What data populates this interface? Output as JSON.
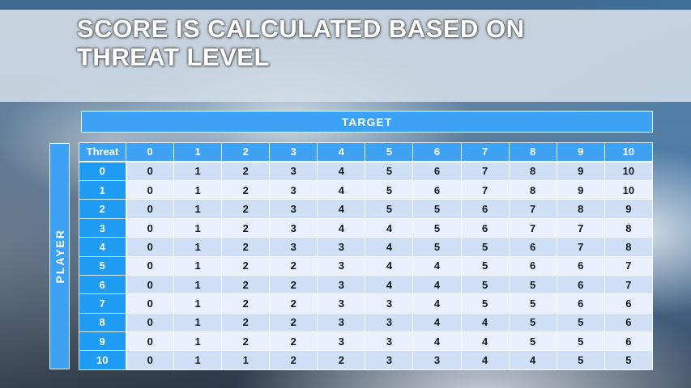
{
  "slide": {
    "title_line1": "SCORE IS CALCULATED BASED ON",
    "title_line2": "THREAT LEVEL"
  },
  "table": {
    "target_label": "TARGET",
    "player_label": "PLAYER",
    "corner_label": "Threat",
    "col_headers": [
      "0",
      "1",
      "2",
      "3",
      "4",
      "5",
      "6",
      "7",
      "8",
      "9",
      "10"
    ],
    "rows": [
      {
        "threat": "0",
        "scores": [
          0,
          1,
          2,
          3,
          4,
          5,
          6,
          7,
          8,
          9,
          10
        ]
      },
      {
        "threat": "1",
        "scores": [
          0,
          1,
          2,
          3,
          4,
          5,
          6,
          7,
          8,
          9,
          10
        ]
      },
      {
        "threat": "2",
        "scores": [
          0,
          1,
          2,
          3,
          4,
          5,
          5,
          6,
          7,
          8,
          9
        ]
      },
      {
        "threat": "3",
        "scores": [
          0,
          1,
          2,
          3,
          4,
          4,
          5,
          6,
          7,
          7,
          8
        ]
      },
      {
        "threat": "4",
        "scores": [
          0,
          1,
          2,
          3,
          3,
          4,
          5,
          5,
          6,
          7,
          8
        ]
      },
      {
        "threat": "5",
        "scores": [
          0,
          1,
          2,
          2,
          3,
          4,
          4,
          5,
          6,
          6,
          7
        ]
      },
      {
        "threat": "6",
        "scores": [
          0,
          1,
          2,
          2,
          3,
          4,
          4,
          5,
          5,
          6,
          7
        ]
      },
      {
        "threat": "7",
        "scores": [
          0,
          1,
          2,
          2,
          3,
          3,
          4,
          5,
          5,
          6,
          6
        ]
      },
      {
        "threat": "8",
        "scores": [
          0,
          1,
          2,
          2,
          3,
          3,
          4,
          4,
          5,
          5,
          6
        ]
      },
      {
        "threat": "9",
        "scores": [
          0,
          1,
          2,
          2,
          3,
          3,
          4,
          4,
          5,
          5,
          6
        ]
      },
      {
        "threat": "10",
        "scores": [
          0,
          1,
          1,
          2,
          2,
          3,
          3,
          4,
          4,
          5,
          5
        ]
      }
    ]
  },
  "colors": {
    "header_blue": "#3da2f3",
    "row_header_blue": "#1e9bf3",
    "band_dark": "#cfe0f6",
    "band_light": "#eaf0fc",
    "body_text": "#12151c",
    "title_band": "#d3dde7",
    "title_text": "#ffffff"
  }
}
